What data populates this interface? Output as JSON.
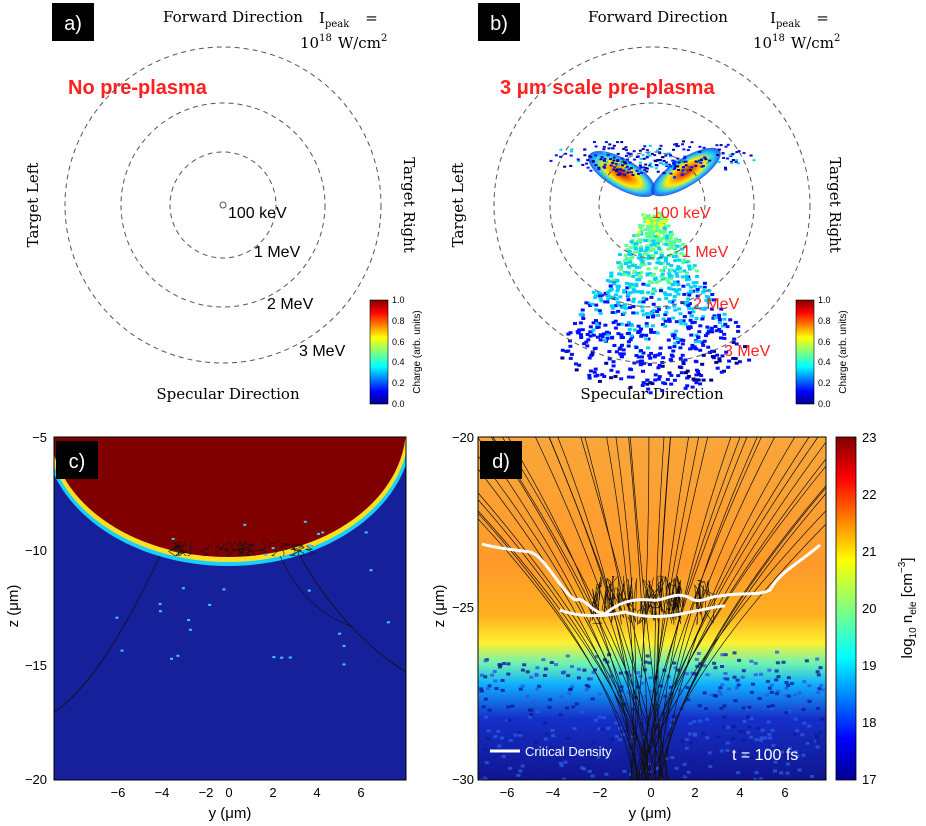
{
  "panel_a": {
    "tag": "a)",
    "forward": "Forward Direction",
    "specular": "Specular Direction",
    "left": "Target Left",
    "right": "Target Right",
    "ipeak_label": "I",
    "ipeak_sub": "peak",
    "ipeak_eq": "=",
    "ipeak_value": "10",
    "ipeak_exp": "18",
    "ipeak_unit": "W/cm",
    "ipeak_unit_exp": "2",
    "headline": "No pre-plasma",
    "rings": [
      "100 keV",
      "1 MeV",
      "2 MeV",
      "3 MeV"
    ],
    "cbar_label": "Charge (arb. units)",
    "cbar_ticks": [
      "1.0",
      "0.8",
      "0.6",
      "0.4",
      "0.2",
      "0.0"
    ]
  },
  "panel_b": {
    "tag": "b)",
    "forward": "Forward Direction",
    "specular": "Specular Direction",
    "left": "Target Left",
    "right": "Target Right",
    "ipeak_label": "I",
    "ipeak_sub": "peak",
    "ipeak_eq": "=",
    "ipeak_value": "10",
    "ipeak_exp": "18",
    "ipeak_unit": "W/cm",
    "ipeak_unit_exp": "2",
    "headline": "3 μm scale pre-plasma",
    "rings": [
      "100 keV",
      "1 MeV",
      "2 MeV",
      "3 MeV"
    ],
    "cbar_label": "Charge (arb. units)",
    "cbar_ticks": [
      "1.0",
      "0.8",
      "0.6",
      "0.4",
      "0.2",
      "0.0"
    ]
  },
  "panel_c": {
    "tag": "c)",
    "xlabel": "y (μm)",
    "ylabel": "z (μm)",
    "xticks": [
      "−6",
      "−4",
      "−2",
      "0",
      "2",
      "4",
      "6"
    ],
    "yticks": [
      "−5",
      "−10",
      "−15",
      "−20"
    ]
  },
  "panel_d": {
    "tag": "d)",
    "xlabel": "y (μm)",
    "ylabel": "z (μm)",
    "xticks": [
      "−6",
      "−4",
      "−2",
      "0",
      "2",
      "4",
      "6"
    ],
    "yticks": [
      "−20",
      "−25",
      "−30"
    ],
    "legend": "Critical Density",
    "time_label": "t = 100 fs",
    "cbar_ylabel_prefix": "log",
    "cbar_ylabel_sub": "10",
    "cbar_ylabel_n": " n",
    "cbar_ylabel_nsub": "ele",
    "cbar_ylabel_unit": " [cm",
    "cbar_ylabel_exp": "−3",
    "cbar_ylabel_close": "]",
    "cbar_ticks": [
      "23",
      "22",
      "21",
      "20",
      "19",
      "18",
      "17"
    ]
  },
  "colors": {
    "accent_red": "#ff2020",
    "ring": "#555555",
    "jet_dark_red": "#800000",
    "jet_dark_blue": "#00008f",
    "background_blue": "#15209a"
  },
  "chart_data": [
    {
      "type": "polar",
      "panel": "a",
      "rings_energy_MeV": [
        0.1,
        1,
        2,
        3
      ],
      "ring_labels": [
        "100 keV",
        "1 MeV",
        "2 MeV",
        "3 MeV"
      ],
      "colorbar": {
        "label": "Charge (arb. units)",
        "range": [
          0,
          1
        ]
      }
    },
    {
      "type": "polar",
      "panel": "b",
      "rings_energy_MeV": [
        0.1,
        1,
        2,
        3
      ],
      "ring_labels": [
        "100 keV",
        "1 MeV",
        "2 MeV",
        "3 MeV"
      ],
      "colorbar": {
        "label": "Charge (arb. units)",
        "range": [
          0,
          1
        ]
      }
    },
    {
      "type": "heatmap",
      "panel": "c",
      "xlabel": "y (μm)",
      "ylabel": "z (μm)",
      "xlim": [
        -7.8,
        8
      ],
      "ylim": [
        -20,
        -5
      ],
      "surface_bottom_z": -10.6
    },
    {
      "type": "heatmap",
      "panel": "d",
      "xlabel": "y (μm)",
      "ylabel": "z (μm)",
      "xlim": [
        -7.5,
        7.6
      ],
      "ylim": [
        -30,
        -20
      ],
      "colorbar": {
        "label": "log10 n_ele [cm^-3]",
        "range": [
          17,
          23
        ]
      },
      "legend": [
        "Critical Density"
      ],
      "annotation": "t = 100 fs"
    }
  ]
}
